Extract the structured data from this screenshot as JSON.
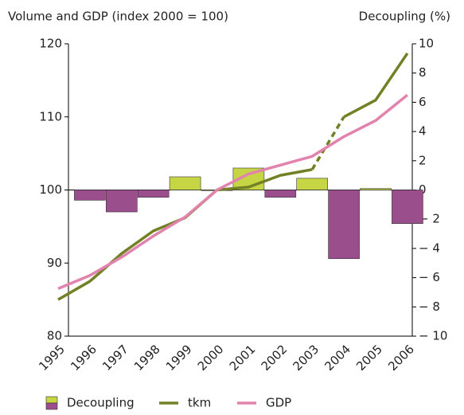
{
  "chart_data": {
    "type": "bar-line",
    "y_title": "Volume and GDP (index 2000 = 100)",
    "y2_title": "Decoupling (%)",
    "categories": [
      "1995",
      "1996",
      "1997",
      "1998",
      "1999",
      "2000",
      "2001",
      "2002",
      "2003",
      "2004",
      "2005",
      "2006"
    ],
    "series": [
      {
        "name": "Decoupling",
        "type": "bar",
        "axis": "y2",
        "color": "#c6d544",
        "negative_color": "#9a4f8c",
        "values": [
          null,
          -0.7,
          -1.5,
          -0.5,
          0.9,
          0,
          1.5,
          -0.5,
          0.8,
          -4.7,
          0.1,
          -2.3
        ]
      },
      {
        "name": "tkm",
        "type": "line",
        "color": "#728126",
        "dashed_between": [
          "2003",
          "2004"
        ],
        "values": [
          85,
          87.5,
          91.3,
          94.4,
          96.2,
          100,
          100.4,
          102,
          102.8,
          110,
          112.3,
          118.7
        ]
      },
      {
        "name": "GDP",
        "type": "line",
        "color": "#e283ae",
        "values": [
          86.5,
          88.3,
          90.8,
          93.7,
          96.3,
          100,
          102.2,
          103.4,
          104.6,
          107.3,
          109.5,
          113
        ]
      }
    ],
    "ylim": [
      80,
      120
    ],
    "yticks": [
      80,
      90,
      100,
      110,
      120
    ],
    "y2lim": [
      -10,
      10
    ],
    "y2ticks": [
      {
        "value": -10,
        "label": "− 10"
      },
      {
        "value": -8,
        "label": "− 8"
      },
      {
        "value": -6,
        "label": "− 6"
      },
      {
        "value": -4,
        "label": "− 4"
      },
      {
        "value": -2,
        "label": "− 2"
      },
      0,
      2,
      4,
      6,
      8,
      10
    ],
    "legend": "bottom"
  }
}
